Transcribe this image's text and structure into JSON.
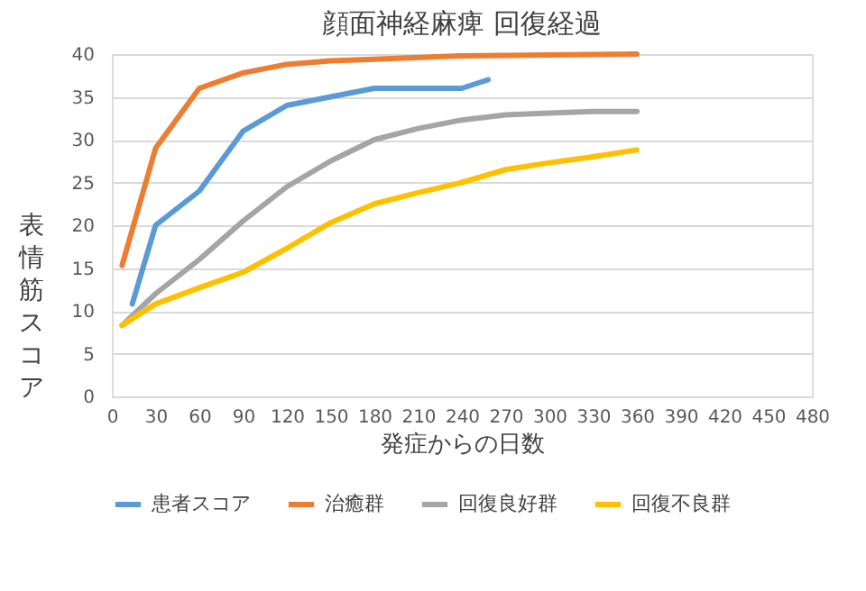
{
  "chart_data": {
    "type": "line",
    "title": "顔面神経麻痺 回復経過",
    "xlabel": "発症からの日数",
    "ylabel": "表情筋スコア",
    "xlim": [
      0,
      480
    ],
    "xticks": [
      0,
      30,
      60,
      90,
      120,
      150,
      180,
      210,
      240,
      270,
      300,
      330,
      360,
      390,
      420,
      450,
      480
    ],
    "ylim": [
      0,
      40
    ],
    "yticks": [
      0,
      5,
      10,
      15,
      20,
      25,
      30,
      35,
      40
    ],
    "grid": "y",
    "legend": "bottom",
    "marker": "none",
    "line_style": "solid",
    "series": [
      {
        "name": "患者スコア",
        "color": "#5b9bd5",
        "x": [
          14,
          30,
          60,
          90,
          120,
          150,
          180,
          210,
          240,
          258
        ],
        "values": [
          10.8,
          20,
          24,
          31,
          34,
          35,
          36,
          36,
          36,
          37
        ]
      },
      {
        "name": "治癒群",
        "color": "#ed7d31",
        "x": [
          7,
          30,
          60,
          90,
          120,
          150,
          180,
          240,
          360
        ],
        "values": [
          15.3,
          29,
          36,
          37.8,
          38.8,
          39.2,
          39.4,
          39.8,
          40
        ]
      },
      {
        "name": "回復良好群",
        "color": "#a5a5a5",
        "x": [
          7,
          30,
          60,
          90,
          120,
          150,
          180,
          210,
          240,
          270,
          300,
          330,
          360
        ],
        "values": [
          8.3,
          12,
          16,
          20.5,
          24.5,
          27.5,
          30,
          31.3,
          32.3,
          32.9,
          33.1,
          33.3,
          33.3
        ]
      },
      {
        "name": "回復不良群",
        "color": "#ffc000",
        "x": [
          7,
          30,
          60,
          90,
          120,
          150,
          180,
          210,
          240,
          270,
          300,
          330,
          360
        ],
        "values": [
          8.3,
          10.8,
          12.7,
          14.5,
          17.3,
          20.3,
          22.5,
          23.8,
          25,
          26.5,
          27.3,
          28,
          28.8
        ]
      }
    ]
  }
}
